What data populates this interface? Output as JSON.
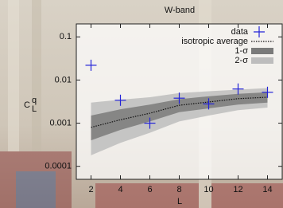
{
  "chart_data": {
    "type": "scatter",
    "title": "W-band",
    "x_label": "L",
    "y_label": {
      "base": "C",
      "sup": "q",
      "sub": "L"
    },
    "x": [
      2,
      4,
      6,
      8,
      10,
      12,
      14
    ],
    "xlim": [
      1,
      15
    ],
    "xticks": [
      2,
      4,
      6,
      8,
      10,
      12,
      14
    ],
    "ylim": [
      5e-05,
      0.2
    ],
    "yticks": [
      0.0001,
      0.001,
      0.01,
      0.1
    ],
    "log_y": true,
    "legend": "top-right",
    "series": [
      {
        "name": "data",
        "color": "#2323d8",
        "values": [
          0.022,
          0.0034,
          0.001,
          0.0038,
          0.0028,
          0.0062,
          0.0052
        ]
      }
    ],
    "average": {
      "name": "isotropic average",
      "color": "#111111",
      "values": [
        0.0008,
        0.0012,
        0.0017,
        0.0026,
        0.0031,
        0.0037,
        0.004
      ]
    },
    "bands": [
      {
        "name": "1-σ",
        "color": "#7a7a7a",
        "lower": [
          0.0004,
          0.0007,
          0.0011,
          0.0018,
          0.0022,
          0.0027,
          0.003
        ],
        "upper": [
          0.0015,
          0.0021,
          0.0027,
          0.0036,
          0.0042,
          0.0048,
          0.0052
        ]
      },
      {
        "name": "2-σ",
        "color": "#bdbdbd",
        "lower": [
          0.00018,
          0.00035,
          0.0006,
          0.0011,
          0.0015,
          0.002,
          0.0023
        ],
        "upper": [
          0.003,
          0.0035,
          0.004,
          0.005,
          0.0055,
          0.006,
          0.0065
        ]
      }
    ]
  }
}
